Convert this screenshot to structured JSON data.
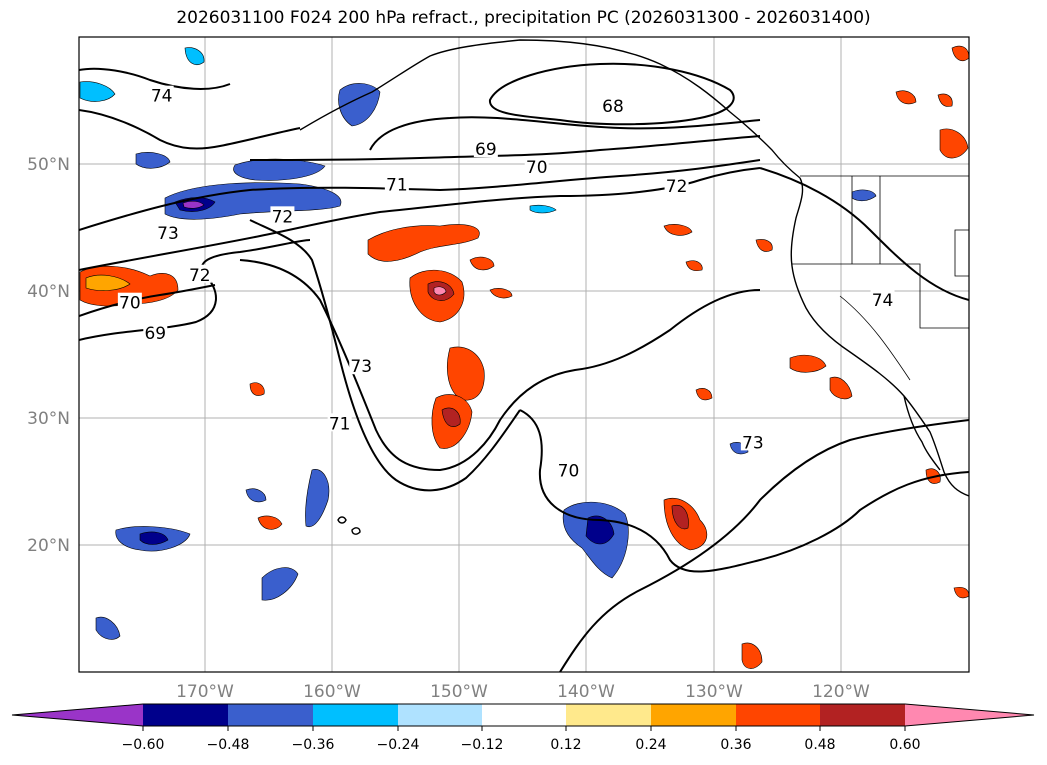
{
  "title": "2026031100 F024 200 hPa refract., precipitation PC (2026031300 - 2026031400)",
  "map": {
    "lon_labels": [
      "170°W",
      "160°W",
      "150°W",
      "140°W",
      "130°W",
      "120°W"
    ],
    "lat_labels": [
      "50°N",
      "40°N",
      "30°N",
      "20°N"
    ],
    "lon_range": [
      -180,
      -110
    ],
    "lat_range": [
      10,
      60
    ]
  },
  "contours": {
    "labels": [
      {
        "text": "74",
        "lon": -173.5,
        "lat": 55.3
      },
      {
        "text": "73",
        "lon": -173,
        "lat": 44.5
      },
      {
        "text": "72",
        "lon": -170.5,
        "lat": 41.2
      },
      {
        "text": "72",
        "lon": -164,
        "lat": 45.8
      },
      {
        "text": "71",
        "lon": -155,
        "lat": 48.3
      },
      {
        "text": "70",
        "lon": -176,
        "lat": 39.0
      },
      {
        "text": "69",
        "lon": -174,
        "lat": 36.6
      },
      {
        "text": "73",
        "lon": -157.8,
        "lat": 34.0
      },
      {
        "text": "71",
        "lon": -159.5,
        "lat": 29.5
      },
      {
        "text": "69",
        "lon": -148,
        "lat": 51.1
      },
      {
        "text": "70",
        "lon": -144,
        "lat": 49.7
      },
      {
        "text": "72",
        "lon": -133,
        "lat": 48.2
      },
      {
        "text": "68",
        "lon": -138,
        "lat": 54.5
      },
      {
        "text": "70",
        "lon": -141.5,
        "lat": 25.8
      },
      {
        "text": "73",
        "lon": -127,
        "lat": 28.0
      },
      {
        "text": "74",
        "lon": -116.8,
        "lat": 39.2
      }
    ]
  },
  "colorbar": {
    "ticks": [
      "−0.60",
      "−0.48",
      "−0.36",
      "−0.24",
      "−0.12",
      "0.12",
      "0.24",
      "0.36",
      "0.48",
      "0.60"
    ],
    "colors": [
      "#9a34c8",
      "#00008b",
      "#3a5fcd",
      "#00bfff",
      "#afe2ff",
      "#ffffff",
      "#ffe98c",
      "#ffa500",
      "#ff4500",
      "#b22222",
      "#ff88b0"
    ]
  }
}
